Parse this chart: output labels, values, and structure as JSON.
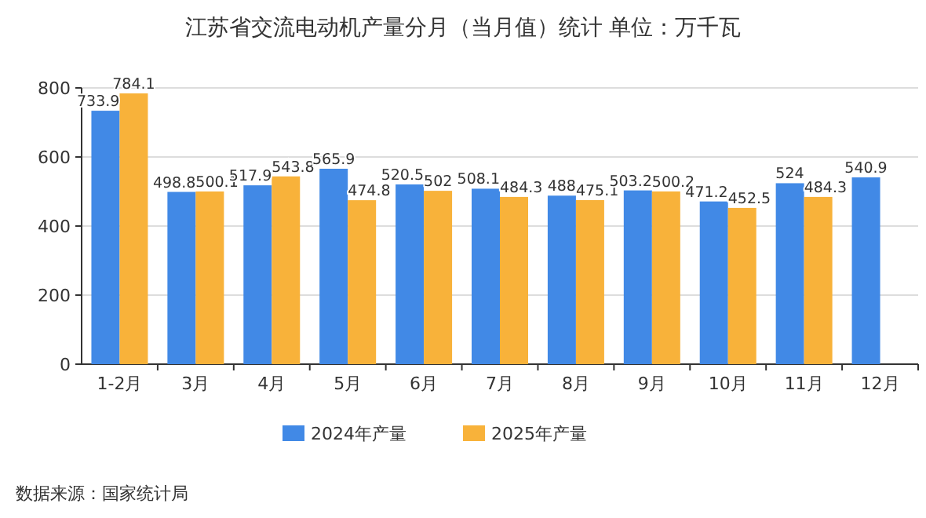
{
  "chart_data": {
    "type": "bar",
    "title": "江苏省交流电动机产量分月（当月值）统计 单位：万千瓦",
    "categories": [
      "1-2月",
      "3月",
      "4月",
      "5月",
      "6月",
      "7月",
      "8月",
      "9月",
      "10月",
      "11月",
      "12月"
    ],
    "series": [
      {
        "name": "2024年产量",
        "color": "#4189e6",
        "values": [
          733.9,
          498.8,
          517.9,
          565.9,
          520.5,
          508.1,
          488,
          503.2,
          471.2,
          524,
          540.9
        ]
      },
      {
        "name": "2025年产量",
        "color": "#f8b23a",
        "values": [
          784.1,
          500.1,
          543.8,
          474.8,
          502,
          484.3,
          475.1,
          500.2,
          452.5,
          484.3,
          null
        ]
      }
    ],
    "ylim": [
      0,
      800
    ],
    "yticks": [
      0,
      200,
      400,
      600,
      800
    ],
    "grid": "y",
    "legend": "bottom",
    "data_labels": true,
    "annotations": [
      "数据来源：国家统计局"
    ]
  }
}
